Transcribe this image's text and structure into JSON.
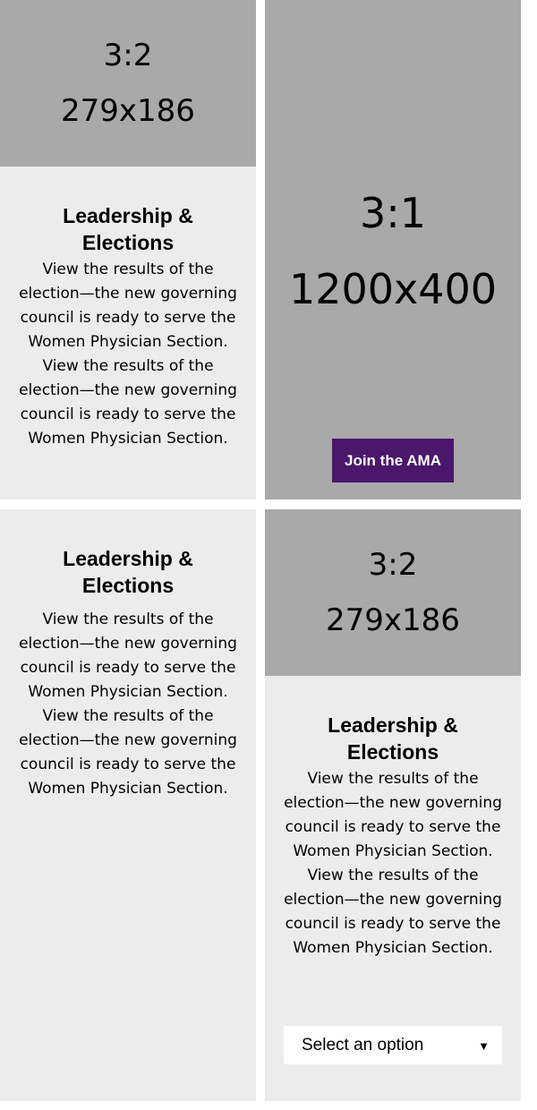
{
  "cards": [
    {
      "placeholder": {
        "ratio": "3:2",
        "size": "279x186"
      },
      "title": "Leadership & Elections",
      "description": "View the results of the election—the new governing council is ready to serve the Women Physician Section. View the results of the election—the new governing council is ready to serve the Women Physician Section."
    },
    {
      "placeholder": {
        "ratio": "3:1",
        "size": "1200x400"
      },
      "button_label": "Join the AMA"
    },
    {
      "title": "Leadership & Elections",
      "description": "View the results of the election—the new governing council is ready to serve the Women Physician Section. View the results of the election—the new governing council is ready to serve the Women Physician Section."
    },
    {
      "placeholder": {
        "ratio": "3:2",
        "size": "279x186"
      },
      "title": "Leadership & Elections",
      "description": "View the results of the election—the new governing council is ready to serve the Women Physician Section. View the results of the election—the new governing council is ready to serve the Women Physician Section.",
      "select": {
        "selected": "Select an option",
        "arrow_icon": "triangle-down-icon"
      }
    }
  ],
  "colors": {
    "card_bg": "#ececec",
    "placeholder_bg": "#a9a9a9",
    "button_bg": "#4a176b",
    "button_text": "#ffffff"
  }
}
